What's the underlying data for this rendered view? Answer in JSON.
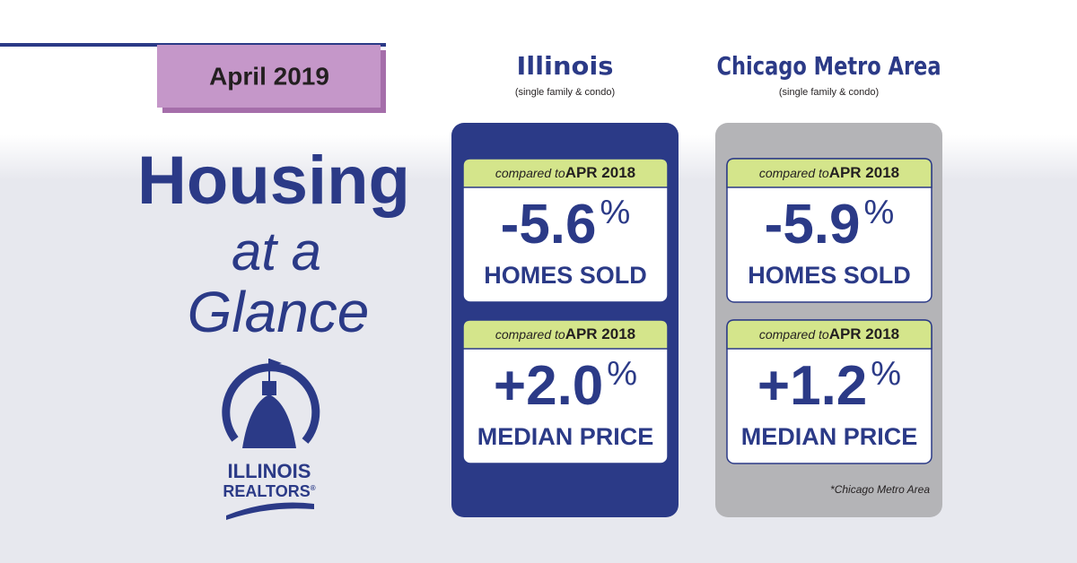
{
  "date_badge": "April 2019",
  "headline": {
    "line1": "Housing",
    "line2": "at a",
    "line3": "Glance"
  },
  "logo": {
    "line1": "ILLINOIS",
    "line2": "REALTORS",
    "mark": "®"
  },
  "columns": [
    {
      "title": "Illinois",
      "subtitle": "(single family & condo)",
      "cards": [
        {
          "compare_prefix": "compared to",
          "compare_period": "APR 2018",
          "value": "-5.6",
          "unit": "%",
          "label": "HOMES SOLD"
        },
        {
          "compare_prefix": "compared to",
          "compare_period": "APR 2018",
          "value": "+2.0",
          "unit": "%",
          "label": "MEDIAN PRICE"
        }
      ]
    },
    {
      "title": "Chicago Metro Area",
      "subtitle": "(single family & condo)",
      "cards": [
        {
          "compare_prefix": "compared to",
          "compare_period": "APR 2018",
          "value": "-5.9",
          "unit": "%",
          "label": "HOMES SOLD"
        },
        {
          "compare_prefix": "compared to",
          "compare_period": "APR 2018",
          "value": "+1.2",
          "unit": "%",
          "label": "MEDIAN PRICE"
        }
      ]
    }
  ],
  "footnote": "*Chicago Metro Area"
}
